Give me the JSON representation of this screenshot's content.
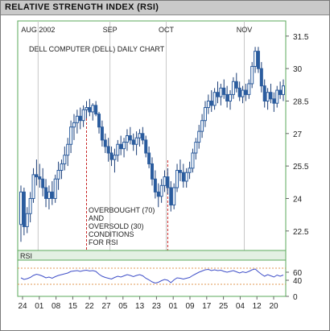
{
  "figure_title": "RELATIVE STRENGTH INDEX (RSI)",
  "chart_data": [
    {
      "type": "candlestick",
      "title": "DELL COMPUTER (DELL) DAILY CHART",
      "y_ticks": [
        "31.5",
        "30",
        "28.5",
        "27",
        "25.5",
        "24",
        "22.5"
      ],
      "ylim": [
        21.6,
        32.2
      ],
      "month_labels": [
        "AUG 2002",
        "SEP",
        "OCT",
        "NOV"
      ],
      "date_labels": [
        "24",
        "01",
        "08",
        "15",
        "22",
        "27",
        "05",
        "13",
        "23",
        "01",
        "09",
        "17",
        "25",
        "04",
        "12",
        "20"
      ],
      "annotation": [
        "OVERBOUGHT (70)",
        "AND",
        "OVERSOLD (30)",
        "CONDITIONS",
        "FOR RSI"
      ],
      "series": [
        {
          "values": [
            {
              "o": 22.8,
              "h": 24.6,
              "l": 22.0,
              "c": 24.3
            },
            {
              "o": 24.3,
              "h": 24.5,
              "l": 22.3,
              "c": 22.7
            },
            {
              "o": 22.7,
              "h": 23.6,
              "l": 22.4,
              "c": 23.3
            },
            {
              "o": 23.3,
              "h": 24.3,
              "l": 22.9,
              "c": 24.0
            },
            {
              "o": 24.0,
              "h": 25.4,
              "l": 23.8,
              "c": 25.1
            },
            {
              "o": 25.1,
              "h": 25.8,
              "l": 24.6,
              "c": 25.0
            },
            {
              "o": 25.0,
              "h": 25.6,
              "l": 24.5,
              "c": 24.9
            },
            {
              "o": 24.9,
              "h": 25.4,
              "l": 24.1,
              "c": 24.5
            },
            {
              "o": 24.5,
              "h": 24.9,
              "l": 23.6,
              "c": 24.0
            },
            {
              "o": 24.0,
              "h": 24.6,
              "l": 23.5,
              "c": 24.3
            },
            {
              "o": 24.3,
              "h": 24.8,
              "l": 23.7,
              "c": 24.0
            },
            {
              "o": 24.0,
              "h": 25.1,
              "l": 23.8,
              "c": 24.9
            },
            {
              "o": 24.9,
              "h": 25.7,
              "l": 24.4,
              "c": 25.3
            },
            {
              "o": 25.3,
              "h": 25.8,
              "l": 24.9,
              "c": 25.6
            },
            {
              "o": 25.6,
              "h": 26.4,
              "l": 25.3,
              "c": 26.0
            },
            {
              "o": 26.0,
              "h": 26.8,
              "l": 25.5,
              "c": 26.5
            },
            {
              "o": 26.5,
              "h": 27.6,
              "l": 26.1,
              "c": 27.3
            },
            {
              "o": 27.3,
              "h": 27.9,
              "l": 26.7,
              "c": 27.5
            },
            {
              "o": 27.5,
              "h": 28.1,
              "l": 27.0,
              "c": 27.8
            },
            {
              "o": 27.8,
              "h": 28.2,
              "l": 27.2,
              "c": 27.6
            },
            {
              "o": 27.6,
              "h": 28.3,
              "l": 27.3,
              "c": 28.1
            },
            {
              "o": 28.1,
              "h": 28.5,
              "l": 27.7,
              "c": 28.2
            },
            {
              "o": 28.2,
              "h": 28.6,
              "l": 27.8,
              "c": 28.0
            },
            {
              "o": 28.0,
              "h": 28.4,
              "l": 27.6,
              "c": 28.3
            },
            {
              "o": 28.3,
              "h": 28.5,
              "l": 27.8,
              "c": 27.9
            },
            {
              "o": 27.9,
              "h": 28.0,
              "l": 27.0,
              "c": 27.3
            },
            {
              "o": 27.3,
              "h": 27.6,
              "l": 26.4,
              "c": 26.7
            },
            {
              "o": 26.7,
              "h": 27.0,
              "l": 26.1,
              "c": 26.4
            },
            {
              "o": 26.4,
              "h": 26.8,
              "l": 25.7,
              "c": 26.1
            },
            {
              "o": 26.1,
              "h": 26.4,
              "l": 25.5,
              "c": 25.8
            },
            {
              "o": 25.8,
              "h": 26.3,
              "l": 25.2,
              "c": 26.0
            },
            {
              "o": 26.0,
              "h": 26.7,
              "l": 25.7,
              "c": 26.5
            },
            {
              "o": 26.5,
              "h": 26.9,
              "l": 26.0,
              "c": 26.3
            },
            {
              "o": 26.3,
              "h": 26.8,
              "l": 25.9,
              "c": 26.6
            },
            {
              "o": 26.6,
              "h": 27.2,
              "l": 26.2,
              "c": 26.9
            },
            {
              "o": 26.9,
              "h": 27.3,
              "l": 26.5,
              "c": 26.7
            },
            {
              "o": 26.7,
              "h": 27.0,
              "l": 26.2,
              "c": 26.5
            },
            {
              "o": 26.5,
              "h": 27.1,
              "l": 26.0,
              "c": 26.8
            },
            {
              "o": 26.8,
              "h": 27.2,
              "l": 26.4,
              "c": 27.0
            },
            {
              "o": 27.0,
              "h": 27.3,
              "l": 26.5,
              "c": 26.7
            },
            {
              "o": 26.7,
              "h": 26.9,
              "l": 25.9,
              "c": 26.1
            },
            {
              "o": 26.1,
              "h": 26.4,
              "l": 25.4,
              "c": 25.6
            },
            {
              "o": 25.6,
              "h": 25.9,
              "l": 24.6,
              "c": 24.9
            },
            {
              "o": 24.9,
              "h": 25.3,
              "l": 24.0,
              "c": 24.3
            },
            {
              "o": 24.3,
              "h": 24.7,
              "l": 23.6,
              "c": 24.1
            },
            {
              "o": 24.1,
              "h": 24.9,
              "l": 23.8,
              "c": 24.6
            },
            {
              "o": 24.6,
              "h": 25.3,
              "l": 24.3,
              "c": 25.0
            },
            {
              "o": 25.0,
              "h": 25.4,
              "l": 24.2,
              "c": 24.5
            },
            {
              "o": 24.5,
              "h": 24.8,
              "l": 23.4,
              "c": 23.7
            },
            {
              "o": 23.7,
              "h": 24.7,
              "l": 23.5,
              "c": 24.5
            },
            {
              "o": 24.5,
              "h": 25.6,
              "l": 24.3,
              "c": 25.3
            },
            {
              "o": 25.3,
              "h": 25.8,
              "l": 24.8,
              "c": 25.2
            },
            {
              "o": 25.2,
              "h": 25.6,
              "l": 24.5,
              "c": 24.8
            },
            {
              "o": 24.8,
              "h": 25.4,
              "l": 24.5,
              "c": 25.2
            },
            {
              "o": 25.2,
              "h": 25.7,
              "l": 24.9,
              "c": 25.4
            },
            {
              "o": 25.4,
              "h": 26.3,
              "l": 25.2,
              "c": 26.1
            },
            {
              "o": 26.1,
              "h": 26.8,
              "l": 25.8,
              "c": 26.6
            },
            {
              "o": 26.6,
              "h": 27.4,
              "l": 26.3,
              "c": 27.1
            },
            {
              "o": 27.1,
              "h": 27.9,
              "l": 26.8,
              "c": 27.6
            },
            {
              "o": 27.6,
              "h": 28.5,
              "l": 27.3,
              "c": 28.2
            },
            {
              "o": 28.2,
              "h": 28.8,
              "l": 27.9,
              "c": 28.5
            },
            {
              "o": 28.5,
              "h": 29.0,
              "l": 28.0,
              "c": 28.3
            },
            {
              "o": 28.3,
              "h": 29.1,
              "l": 28.1,
              "c": 28.9
            },
            {
              "o": 28.9,
              "h": 29.4,
              "l": 28.4,
              "c": 28.7
            },
            {
              "o": 28.7,
              "h": 29.3,
              "l": 28.3,
              "c": 29.1
            },
            {
              "o": 29.1,
              "h": 29.5,
              "l": 28.6,
              "c": 28.8
            },
            {
              "o": 28.8,
              "h": 29.2,
              "l": 28.2,
              "c": 28.5
            },
            {
              "o": 28.5,
              "h": 29.0,
              "l": 28.1,
              "c": 28.8
            },
            {
              "o": 28.8,
              "h": 29.6,
              "l": 28.6,
              "c": 29.4
            },
            {
              "o": 29.4,
              "h": 29.8,
              "l": 28.9,
              "c": 29.1
            },
            {
              "o": 29.1,
              "h": 29.4,
              "l": 28.5,
              "c": 28.7
            },
            {
              "o": 28.7,
              "h": 29.2,
              "l": 28.4,
              "c": 29.0
            },
            {
              "o": 29.0,
              "h": 29.3,
              "l": 28.5,
              "c": 28.8
            },
            {
              "o": 28.8,
              "h": 29.5,
              "l": 28.6,
              "c": 29.3
            },
            {
              "o": 29.3,
              "h": 30.3,
              "l": 29.1,
              "c": 30.1
            },
            {
              "o": 30.1,
              "h": 31.0,
              "l": 29.8,
              "c": 30.8
            },
            {
              "o": 30.8,
              "h": 31.0,
              "l": 29.8,
              "c": 30.0
            },
            {
              "o": 30.0,
              "h": 30.3,
              "l": 28.9,
              "c": 29.2
            },
            {
              "o": 29.2,
              "h": 29.5,
              "l": 28.2,
              "c": 28.5
            },
            {
              "o": 28.5,
              "h": 29.1,
              "l": 28.1,
              "c": 28.9
            },
            {
              "o": 28.9,
              "h": 29.3,
              "l": 28.4,
              "c": 28.6
            },
            {
              "o": 28.6,
              "h": 28.9,
              "l": 28.0,
              "c": 28.4
            },
            {
              "o": 28.4,
              "h": 29.2,
              "l": 28.2,
              "c": 29.0
            },
            {
              "o": 29.0,
              "h": 29.4,
              "l": 28.6,
              "c": 28.8
            },
            {
              "o": 28.8,
              "h": 29.5,
              "l": 28.5,
              "c": 29.2
            }
          ]
        }
      ]
    },
    {
      "type": "line",
      "title": "RSI",
      "y_ticks": [
        "60",
        "40",
        "0"
      ],
      "ylim": [
        0,
        90
      ],
      "reference_lines": [
        70,
        30
      ],
      "series": [
        {
          "values": [
            46,
            42,
            44,
            47,
            52,
            55,
            53,
            50,
            46,
            48,
            45,
            49,
            52,
            54,
            56,
            58,
            62,
            63,
            64,
            62,
            64,
            65,
            63,
            64,
            62,
            55,
            50,
            47,
            45,
            43,
            47,
            50,
            48,
            51,
            54,
            52,
            49,
            52,
            54,
            51,
            45,
            41,
            36,
            33,
            35,
            39,
            42,
            40,
            34,
            41,
            46,
            45,
            43,
            45,
            47,
            52,
            56,
            60,
            63,
            66,
            67,
            64,
            66,
            64,
            65,
            62,
            60,
            62,
            64,
            61,
            58,
            61,
            59,
            62,
            66,
            68,
            61,
            55,
            50,
            54,
            51,
            48,
            53,
            50,
            53
          ]
        }
      ]
    }
  ],
  "colors": {
    "title_bar": "#c9c9c9",
    "candle_body": "#2b5c9e",
    "candle_wick": "#1c3f78",
    "rsi_line": "#3f4fc8",
    "month_dash": "#c82828",
    "ref_line": "#e09a55",
    "panel_border": "#5ba85b",
    "rsi_band": "#e3f0e3",
    "grid_line": "#c8c8c8"
  }
}
